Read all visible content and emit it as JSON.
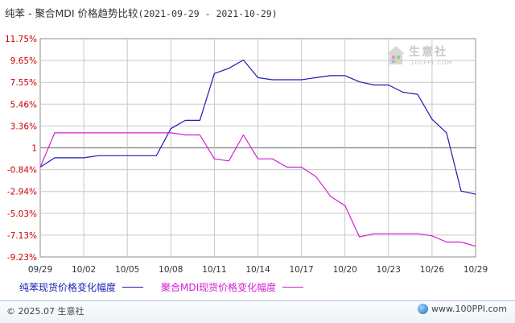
{
  "title": {
    "main": "纯苯 - 聚合MDI 价格趋势比较",
    "range": "(2021-09-29 - 2021-10-29)"
  },
  "watermark": {
    "name": "生意社",
    "url": "100PPI.COM",
    "icon": "house-logo-icon"
  },
  "footer": {
    "copyright": "© 2025.07 生意社",
    "site": "www.100PPI.com",
    "icon": "globe-icon"
  },
  "colors": {
    "series1": "#1c1cb4",
    "series2": "#d21ed2",
    "axis_text": "#cc0000",
    "grid": "#c8c8c8",
    "zero_line": "#7f7f7f"
  },
  "chart_data": {
    "type": "line",
    "title": "纯苯 - 聚合MDI 价格趋势比较",
    "xlabel": "",
    "ylabel": "",
    "x_ticks": [
      "09/29",
      "10/02",
      "10/05",
      "10/08",
      "10/11",
      "10/14",
      "10/17",
      "10/20",
      "10/23",
      "10/26",
      "10/29"
    ],
    "y_ticks": [
      "11.75%",
      "9.65%",
      "7.55%",
      "5.46%",
      "3.36%",
      "1",
      "-0.84%",
      "-2.94%",
      "-5.03%",
      "-7.13%",
      "-9.23%"
    ],
    "ylim": [
      -9.23,
      11.75
    ],
    "grid": true,
    "legend_position": "bottom",
    "x": [
      "09/29",
      "09/30",
      "10/01",
      "10/02",
      "10/03",
      "10/04",
      "10/05",
      "10/06",
      "10/07",
      "10/08",
      "10/09",
      "10/10",
      "10/11",
      "10/12",
      "10/13",
      "10/14",
      "10/15",
      "10/16",
      "10/17",
      "10/18",
      "10/19",
      "10/20",
      "10/21",
      "10/22",
      "10/23",
      "10/24",
      "10/25",
      "10/26",
      "10/27",
      "10/28",
      "10/29"
    ],
    "series": [
      {
        "name": "纯苯现货价格变化幅度",
        "values": [
          -0.6,
          0.3,
          0.3,
          0.3,
          0.5,
          0.5,
          0.5,
          0.5,
          0.5,
          3.1,
          3.9,
          3.9,
          8.4,
          8.9,
          9.7,
          8.0,
          7.8,
          7.8,
          7.8,
          8.0,
          8.2,
          8.2,
          7.6,
          7.3,
          7.3,
          6.6,
          6.4,
          4.0,
          2.7,
          -2.9,
          -3.2
        ]
      },
      {
        "name": "聚合MDI现货价格变化幅度",
        "values": [
          -0.6,
          2.7,
          2.7,
          2.7,
          2.7,
          2.7,
          2.7,
          2.7,
          2.7,
          2.7,
          2.5,
          2.5,
          0.2,
          0.0,
          2.5,
          0.2,
          0.2,
          -0.6,
          -0.6,
          -1.5,
          -3.4,
          -4.3,
          -7.3,
          -7.0,
          -7.0,
          -7.0,
          -7.0,
          -7.2,
          -7.8,
          -7.8,
          -8.2
        ]
      }
    ]
  }
}
